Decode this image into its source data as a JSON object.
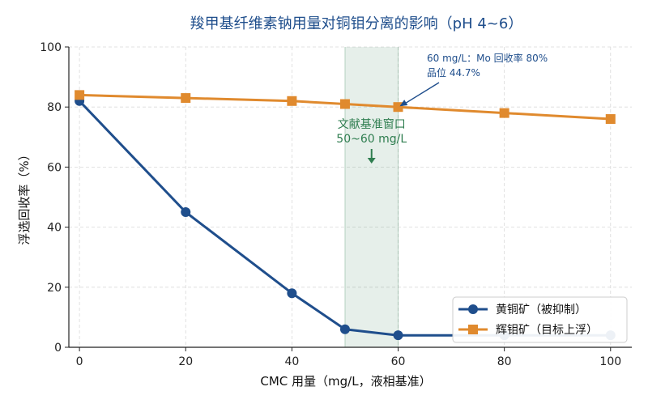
{
  "chart_data": {
    "type": "line",
    "title": "羧甲基纤维素钠用量对铜钼分离的影响（pH 4~6）",
    "xlabel": "CMC 用量（mg/L，液相基准）",
    "ylabel": "浮选回收率（%）",
    "x": [
      0,
      20,
      40,
      50,
      60,
      80,
      100
    ],
    "xticks": [
      0,
      20,
      40,
      60,
      80,
      100
    ],
    "xlim": [
      -2,
      104
    ],
    "ylim": [
      0,
      100
    ],
    "yticks": [
      0,
      20,
      40,
      60,
      80,
      100
    ],
    "grid": true,
    "legend_position": "bottom-right",
    "series": [
      {
        "name": "黄铜矿（被抑制）",
        "color": "#1f4e8c",
        "marker": "circle",
        "values": [
          82,
          45,
          18,
          6,
          4,
          4,
          4
        ]
      },
      {
        "name": "辉钼矿（目标上浮）",
        "color": "#e08a2e",
        "marker": "square",
        "values": [
          84,
          83,
          82,
          81,
          80,
          78,
          76
        ]
      }
    ],
    "highlight_band": {
      "x_range": [
        50,
        60
      ],
      "color": "#2e7d4f",
      "label_lines": [
        "文献基准窗口",
        "50~60 mg/L"
      ]
    },
    "annotation": {
      "lines": [
        "60 mg/L：Mo 回收率 80%",
        "品位 44.7%"
      ],
      "target": [
        60,
        80
      ]
    }
  }
}
